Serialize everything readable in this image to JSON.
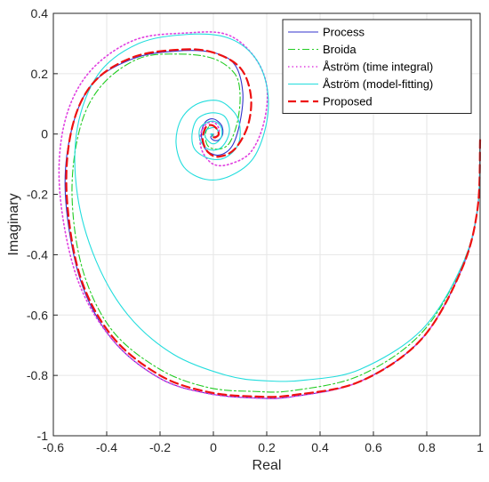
{
  "chart_data": {
    "type": "line",
    "xlabel": "Real",
    "ylabel": "Imaginary",
    "xlim": [
      -0.6,
      1
    ],
    "ylim": [
      -1,
      0.4
    ],
    "x_ticks": [
      -0.6,
      -0.4,
      -0.2,
      0,
      0.2,
      0.4,
      0.6,
      0.8,
      1
    ],
    "y_ticks": [
      -1,
      -0.8,
      -0.6,
      -0.4,
      -0.2,
      0,
      0.2,
      0.4
    ],
    "x_tick_labels": [
      "-0.6",
      "-0.4",
      "-0.2",
      "0",
      "0.2",
      "0.4",
      "0.6",
      "0.8",
      "1"
    ],
    "y_tick_labels": [
      "-1",
      "-0.8",
      "-0.6",
      "-0.4",
      "-0.2",
      "0",
      "0.2",
      "0.4"
    ],
    "grid": true,
    "legend_position": "top-right",
    "series": [
      {
        "name": "Process",
        "color": "#3333cc",
        "style": "solid",
        "points": [
          [
            1.0,
            -0.02
          ],
          [
            0.99,
            -0.25
          ],
          [
            0.93,
            -0.45
          ],
          [
            0.78,
            -0.68
          ],
          [
            0.55,
            -0.82
          ],
          [
            0.3,
            -0.87
          ],
          [
            0.16,
            -0.875
          ],
          [
            -0.02,
            -0.86
          ],
          [
            -0.2,
            -0.81
          ],
          [
            -0.38,
            -0.68
          ],
          [
            -0.5,
            -0.48
          ],
          [
            -0.555,
            -0.2
          ],
          [
            -0.53,
            0.02
          ],
          [
            -0.45,
            0.17
          ],
          [
            -0.3,
            0.25
          ],
          [
            -0.14,
            0.275
          ],
          [
            0.0,
            0.27
          ],
          [
            0.08,
            0.23
          ],
          [
            0.11,
            0.14
          ],
          [
            0.1,
            0.04
          ],
          [
            0.07,
            -0.04
          ],
          [
            0.02,
            -0.07
          ],
          [
            -0.03,
            -0.05
          ],
          [
            -0.045,
            0.0
          ],
          [
            -0.03,
            0.04
          ],
          [
            0.0,
            0.05
          ],
          [
            0.03,
            0.03
          ],
          [
            0.035,
            0.0
          ],
          [
            0.02,
            -0.02
          ],
          [
            0.0,
            -0.02
          ],
          [
            -0.01,
            -0.01
          ],
          [
            0.0,
            0.0
          ]
        ]
      },
      {
        "name": "Broida",
        "color": "#22cc22",
        "style": "dashdot",
        "points": [
          [
            1.0,
            -0.02
          ],
          [
            0.99,
            -0.25
          ],
          [
            0.93,
            -0.44
          ],
          [
            0.78,
            -0.66
          ],
          [
            0.55,
            -0.8
          ],
          [
            0.3,
            -0.85
          ],
          [
            0.15,
            -0.853
          ],
          [
            -0.02,
            -0.84
          ],
          [
            -0.2,
            -0.78
          ],
          [
            -0.38,
            -0.65
          ],
          [
            -0.49,
            -0.45
          ],
          [
            -0.53,
            -0.2
          ],
          [
            -0.5,
            0.02
          ],
          [
            -0.42,
            0.16
          ],
          [
            -0.28,
            0.25
          ],
          [
            -0.13,
            0.265
          ],
          [
            0.0,
            0.25
          ],
          [
            0.08,
            0.2
          ],
          [
            0.1,
            0.13
          ],
          [
            0.09,
            0.04
          ],
          [
            0.06,
            -0.03
          ],
          [
            0.02,
            -0.05
          ],
          [
            -0.02,
            -0.04
          ],
          [
            -0.03,
            0.0
          ],
          [
            -0.01,
            0.03
          ],
          [
            0.01,
            0.02
          ],
          [
            0.02,
            0.0
          ],
          [
            0.0,
            -0.01
          ],
          [
            0.0,
            0.0
          ]
        ]
      },
      {
        "name": "Åström (time integral)",
        "color": "#e040e0",
        "style": "dotted",
        "points": [
          [
            1.0,
            -0.02
          ],
          [
            0.99,
            -0.25
          ],
          [
            0.93,
            -0.45
          ],
          [
            0.78,
            -0.68
          ],
          [
            0.55,
            -0.82
          ],
          [
            0.3,
            -0.87
          ],
          [
            0.16,
            -0.875
          ],
          [
            -0.02,
            -0.86
          ],
          [
            -0.2,
            -0.81
          ],
          [
            -0.38,
            -0.68
          ],
          [
            -0.51,
            -0.48
          ],
          [
            -0.575,
            -0.2
          ],
          [
            -0.56,
            0.03
          ],
          [
            -0.47,
            0.2
          ],
          [
            -0.3,
            0.31
          ],
          [
            -0.1,
            0.335
          ],
          [
            0.05,
            0.33
          ],
          [
            0.15,
            0.26
          ],
          [
            0.2,
            0.16
          ],
          [
            0.19,
            0.04
          ],
          [
            0.14,
            -0.06
          ],
          [
            0.06,
            -0.1
          ],
          [
            0.0,
            -0.1
          ],
          [
            -0.04,
            -0.06
          ],
          [
            -0.05,
            -0.01
          ],
          [
            -0.03,
            0.03
          ],
          [
            0.0,
            0.04
          ],
          [
            0.02,
            0.02
          ],
          [
            0.02,
            0.0
          ],
          [
            0.01,
            -0.01
          ],
          [
            0.0,
            0.0
          ]
        ]
      },
      {
        "name": "Åström (model-fitting)",
        "color": "#22dddd",
        "style": "solid",
        "points": [
          [
            1.0,
            -0.02
          ],
          [
            0.99,
            -0.25
          ],
          [
            0.93,
            -0.44
          ],
          [
            0.78,
            -0.65
          ],
          [
            0.55,
            -0.78
          ],
          [
            0.35,
            -0.815
          ],
          [
            0.2,
            -0.818
          ],
          [
            0.05,
            -0.8
          ],
          [
            -0.15,
            -0.73
          ],
          [
            -0.32,
            -0.6
          ],
          [
            -0.44,
            -0.42
          ],
          [
            -0.51,
            -0.2
          ],
          [
            -0.51,
            0.02
          ],
          [
            -0.43,
            0.2
          ],
          [
            -0.28,
            0.3
          ],
          [
            -0.1,
            0.33
          ],
          [
            0.05,
            0.32
          ],
          [
            0.15,
            0.26
          ],
          [
            0.2,
            0.16
          ],
          [
            0.2,
            0.04
          ],
          [
            0.15,
            -0.08
          ],
          [
            0.06,
            -0.14
          ],
          [
            -0.03,
            -0.15
          ],
          [
            -0.11,
            -0.11
          ],
          [
            -0.14,
            -0.03
          ],
          [
            -0.12,
            0.05
          ],
          [
            -0.06,
            0.1
          ],
          [
            0.02,
            0.11
          ],
          [
            0.08,
            0.07
          ],
          [
            0.1,
            0.02
          ],
          [
            0.09,
            -0.04
          ],
          [
            0.04,
            -0.08
          ],
          [
            -0.02,
            -0.08
          ],
          [
            -0.07,
            -0.05
          ],
          [
            -0.08,
            0.0
          ],
          [
            -0.06,
            0.05
          ],
          [
            -0.01,
            0.07
          ],
          [
            0.04,
            0.06
          ],
          [
            0.06,
            0.02
          ],
          [
            0.05,
            -0.02
          ],
          [
            0.02,
            -0.05
          ],
          [
            -0.02,
            -0.05
          ],
          [
            -0.05,
            -0.02
          ],
          [
            -0.05,
            0.02
          ],
          [
            -0.02,
            0.04
          ],
          [
            0.01,
            0.04
          ],
          [
            0.03,
            0.02
          ],
          [
            0.03,
            -0.01
          ],
          [
            0.01,
            -0.03
          ],
          [
            -0.01,
            -0.03
          ],
          [
            -0.03,
            -0.01
          ],
          [
            -0.03,
            0.01
          ],
          [
            -0.01,
            0.02
          ],
          [
            0.01,
            0.02
          ],
          [
            0.02,
            0.0
          ],
          [
            0.01,
            -0.01
          ],
          [
            0.0,
            -0.01
          ],
          [
            -0.01,
            0.0
          ],
          [
            0.0,
            0.0
          ]
        ]
      },
      {
        "name": "Proposed",
        "color": "#ee1111",
        "style": "dashed",
        "points": [
          [
            1.0,
            -0.02
          ],
          [
            0.99,
            -0.25
          ],
          [
            0.93,
            -0.45
          ],
          [
            0.78,
            -0.68
          ],
          [
            0.55,
            -0.82
          ],
          [
            0.3,
            -0.865
          ],
          [
            0.16,
            -0.87
          ],
          [
            -0.02,
            -0.855
          ],
          [
            -0.2,
            -0.8
          ],
          [
            -0.38,
            -0.67
          ],
          [
            -0.5,
            -0.47
          ],
          [
            -0.55,
            -0.2
          ],
          [
            -0.53,
            0.02
          ],
          [
            -0.45,
            0.17
          ],
          [
            -0.3,
            0.255
          ],
          [
            -0.12,
            0.28
          ],
          [
            0.0,
            0.27
          ],
          [
            0.1,
            0.22
          ],
          [
            0.14,
            0.13
          ],
          [
            0.13,
            0.03
          ],
          [
            0.08,
            -0.05
          ],
          [
            0.02,
            -0.075
          ],
          [
            -0.02,
            -0.06
          ],
          [
            -0.04,
            -0.02
          ],
          [
            -0.03,
            0.02
          ],
          [
            -0.01,
            0.03
          ],
          [
            0.01,
            0.02
          ],
          [
            0.02,
            0.0
          ],
          [
            0.01,
            -0.01
          ],
          [
            0.0,
            -0.01
          ],
          [
            0.0,
            0.0
          ]
        ]
      }
    ]
  }
}
